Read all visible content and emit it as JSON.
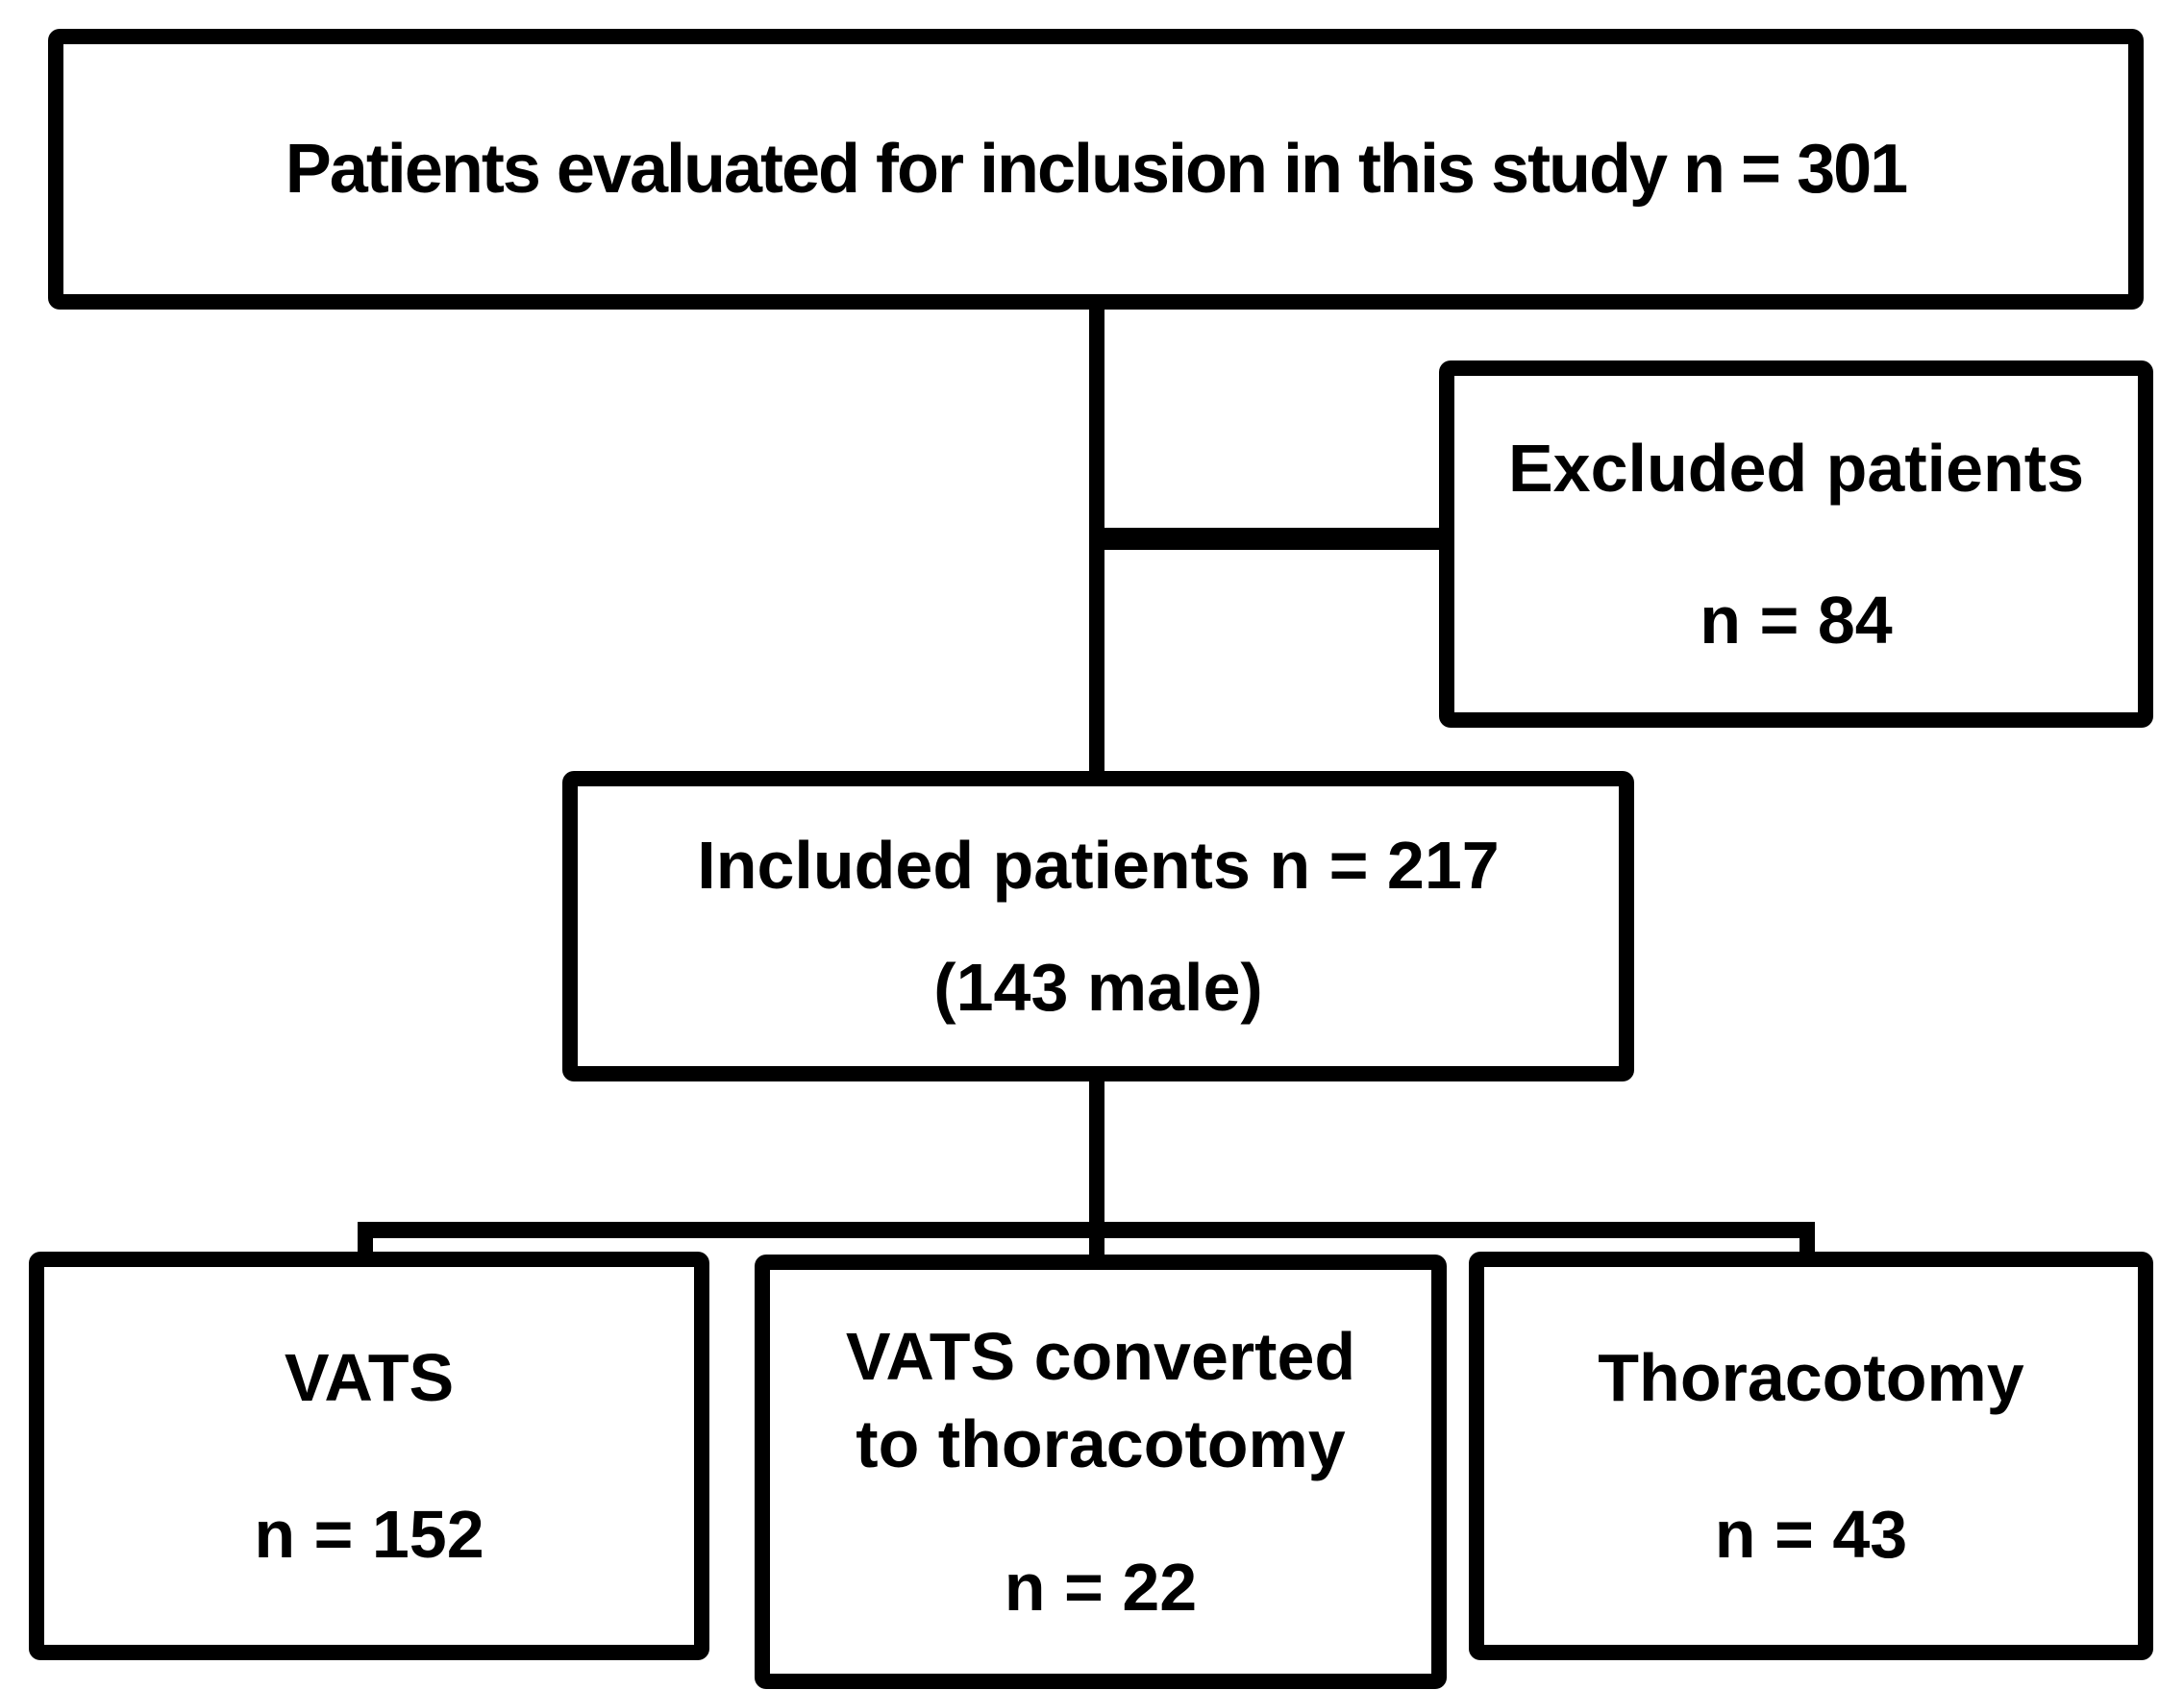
{
  "figure": {
    "type": "flow-diagram",
    "background_color": "#ffffff",
    "stroke_color": "#000000",
    "text_color": "#000000",
    "nodes": {
      "evaluated": {
        "lines": [
          "Patients evaluated for inclusion in this study n = 301"
        ],
        "n": 301
      },
      "excluded": {
        "lines": [
          "Excluded patients",
          "n = 84"
        ],
        "n": 84
      },
      "included": {
        "lines": [
          "Included patients n = 217",
          "(143 male)"
        ],
        "n": 217,
        "male": 143
      },
      "vats": {
        "lines": [
          "VATS",
          "n = 152"
        ],
        "n": 152
      },
      "vats_converted": {
        "lines": [
          "VATS converted",
          "to thoracotomy",
          "n = 22"
        ],
        "n": 22
      },
      "thoracotomy": {
        "lines": [
          "Thoracotomy",
          "n = 43"
        ],
        "n": 43
      }
    },
    "edges": [
      {
        "from": "evaluated",
        "to": "excluded"
      },
      {
        "from": "evaluated",
        "to": "included"
      },
      {
        "from": "included",
        "to": "vats"
      },
      {
        "from": "included",
        "to": "vats_converted"
      },
      {
        "from": "included",
        "to": "thoracotomy"
      }
    ]
  }
}
